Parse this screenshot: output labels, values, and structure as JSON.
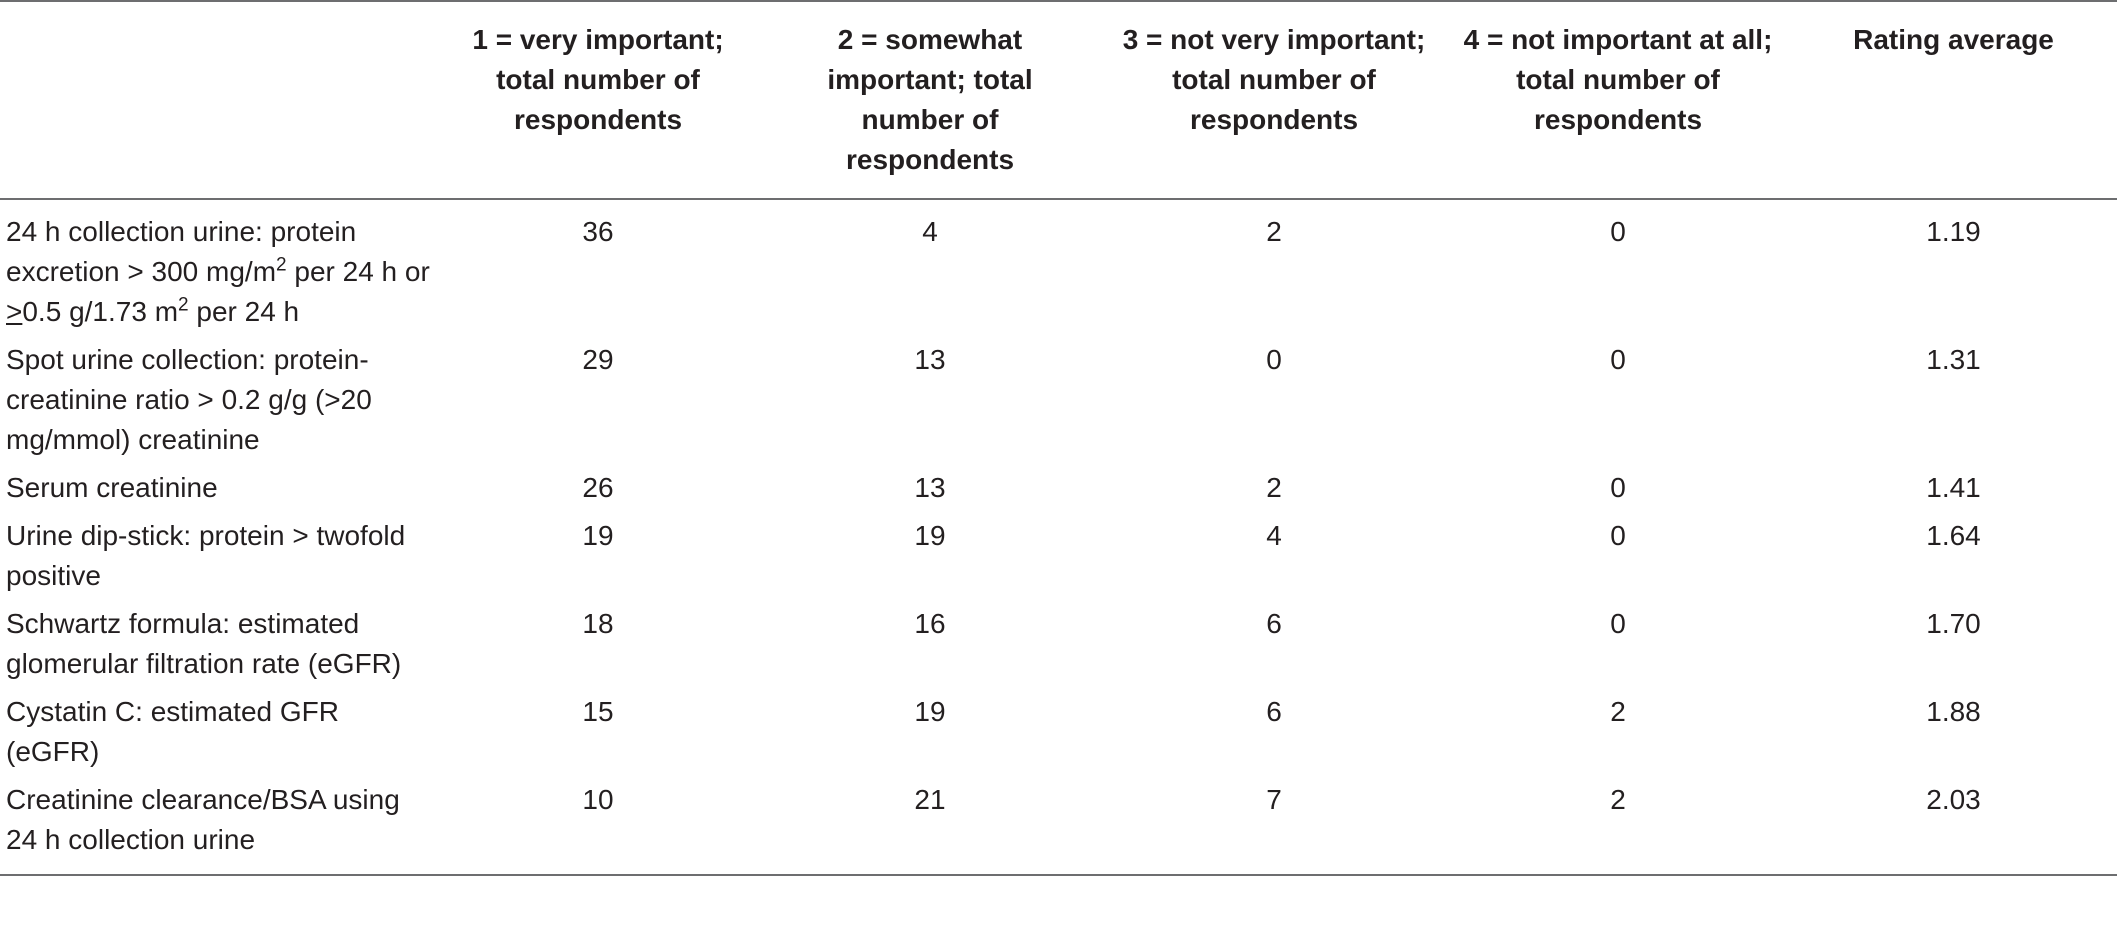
{
  "table": {
    "headers": [
      "",
      "1 = very important; total number of respondents",
      "2 = somewhat important; total number of respondents",
      "3 = not very important; total number of respondents",
      "4 = not important at all; total number of respondents",
      "Rating average"
    ],
    "rows": [
      {
        "label": {
          "part1": "24 h collection urine: protein excretion > 300 mg/m",
          "sup1": "2",
          "part2": " per 24 h or ",
          "ge": ">",
          "part3": "0.5 g/1.73 m",
          "sup2": "2",
          "part4": " per 24 h"
        },
        "v1": "36",
        "v2": "4",
        "v3": "2",
        "v4": "0",
        "avg": "1.19"
      },
      {
        "label": {
          "text": "Spot urine collection: protein-creatinine ratio > 0.2 g/g (>20 mg/mmol) creatinine"
        },
        "v1": "29",
        "v2": "13",
        "v3": "0",
        "v4": "0",
        "avg": "1.31"
      },
      {
        "label": {
          "text": "Serum creatinine"
        },
        "v1": "26",
        "v2": "13",
        "v3": "2",
        "v4": "0",
        "avg": "1.41"
      },
      {
        "label": {
          "text": "Urine dip-stick: protein > twofold positive"
        },
        "v1": "19",
        "v2": "19",
        "v3": "4",
        "v4": "0",
        "avg": "1.64"
      },
      {
        "label": {
          "text": "Schwartz formula: estimated glomerular filtration rate (eGFR)"
        },
        "v1": "18",
        "v2": "16",
        "v3": "6",
        "v4": "0",
        "avg": "1.70"
      },
      {
        "label": {
          "text": "Cystatin C: estimated GFR (eGFR)"
        },
        "v1": "15",
        "v2": "19",
        "v3": "6",
        "v4": "2",
        "avg": "1.88"
      },
      {
        "label": {
          "text": "Creatinine clearance/BSA using 24 h collection urine"
        },
        "v1": "10",
        "v2": "21",
        "v3": "7",
        "v4": "2",
        "avg": "2.03"
      }
    ]
  }
}
